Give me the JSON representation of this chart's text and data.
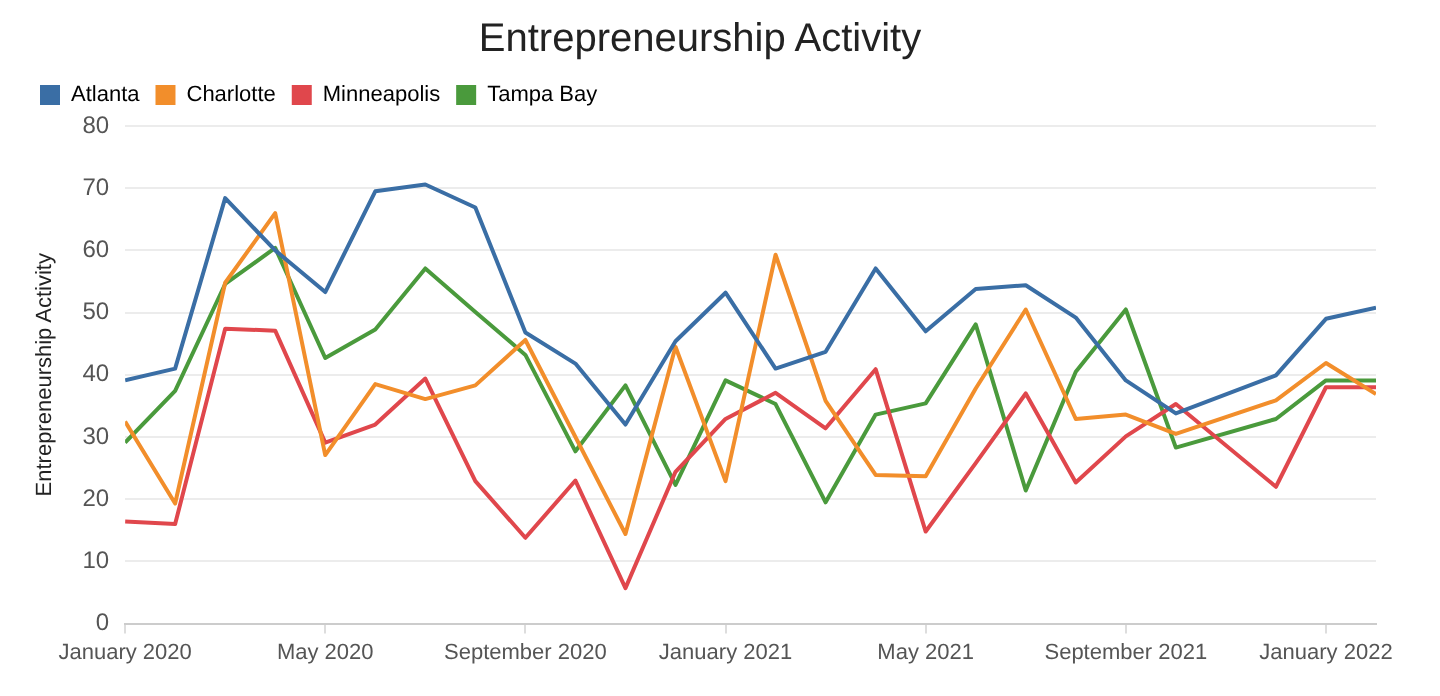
{
  "chart_data": {
    "type": "line",
    "title": "Entrepreneurship Activity",
    "ylabel": "Entrepreneurship Activity",
    "x": [
      "2020-01",
      "2020-02",
      "2020-03",
      "2020-04",
      "2020-05",
      "2020-06",
      "2020-07",
      "2020-08",
      "2020-09",
      "2020-10",
      "2020-11",
      "2020-12",
      "2021-01",
      "2021-02",
      "2021-03",
      "2021-04",
      "2021-05",
      "2021-06",
      "2021-07",
      "2021-08",
      "2021-09",
      "2021-10",
      "2021-12",
      "2022-01",
      "2022-02"
    ],
    "series": [
      {
        "name": "Atlanta",
        "color": "#3a6ea5",
        "values": [
          39.1,
          41,
          68.4,
          60,
          53.3,
          69.5,
          70.6,
          66.9,
          46.8,
          41.8,
          32,
          45.4,
          53.2,
          41,
          43.7,
          57.1,
          47,
          53.8,
          54.4,
          49.2,
          39.1,
          33.8,
          39.9,
          49,
          50.8
        ]
      },
      {
        "name": "Charlotte",
        "color": "#f28e2b",
        "values": [
          32.5,
          19.3,
          54.8,
          66,
          27.1,
          38.5,
          36.1,
          38.3,
          45.6,
          30,
          14.4,
          44.5,
          22.9,
          59.3,
          35.8,
          23.9,
          23.7,
          37.8,
          50.5,
          32.9,
          33.6,
          30.5,
          35.9,
          41.9,
          36.9
        ]
      },
      {
        "name": "Minneapolis",
        "color": "#e0474c",
        "values": [
          16.4,
          16,
          47.4,
          47.1,
          29.1,
          32,
          39.4,
          22.9,
          13.8,
          23,
          5.7,
          24.4,
          32.9,
          37.1,
          31.4,
          40.9,
          14.8,
          25.8,
          37,
          22.7,
          30.1,
          35.3,
          22,
          38,
          38
        ]
      },
      {
        "name": "Tampa Bay",
        "color": "#4a9a3c",
        "values": [
          29.1,
          37.4,
          54.6,
          60.4,
          42.7,
          47.3,
          57.1,
          50.1,
          43.2,
          27.7,
          38.3,
          22.3,
          39.1,
          35.3,
          19.5,
          33.6,
          35.4,
          48.1,
          21.4,
          40.5,
          50.5,
          28.3,
          32.9,
          39.1,
          39.1
        ]
      }
    ],
    "xlim": [
      "2020-01",
      "2022-02"
    ],
    "xticks": [
      {
        "value": "2020-01",
        "label": "January 2020"
      },
      {
        "value": "2020-05",
        "label": "May 2020"
      },
      {
        "value": "2020-09",
        "label": "September 2020"
      },
      {
        "value": "2021-01",
        "label": "January 2021"
      },
      {
        "value": "2021-05",
        "label": "May 2021"
      },
      {
        "value": "2021-09",
        "label": "September 2021"
      },
      {
        "value": "2022-01",
        "label": "January 2022"
      }
    ],
    "ylim": [
      0,
      80
    ],
    "yticks": [
      0,
      10,
      20,
      30,
      40,
      50,
      60,
      70,
      80
    ],
    "grid": "y",
    "legend": "top left",
    "marker": "none",
    "line_style": "solid"
  }
}
